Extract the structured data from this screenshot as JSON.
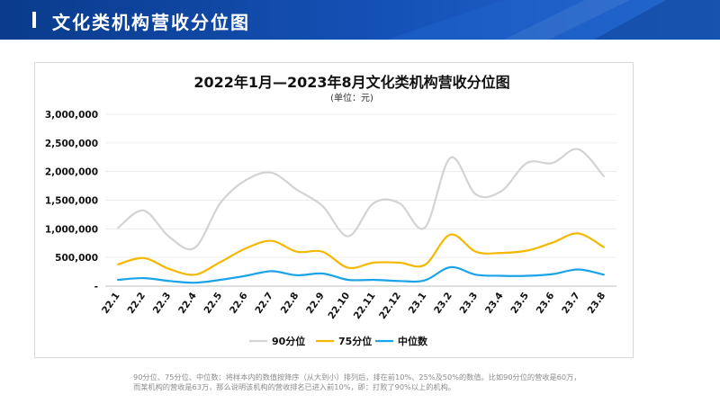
{
  "header": {
    "title": "文化类机构营收分位图"
  },
  "chart_data": {
    "type": "line",
    "title": "2022年1月—2023年8月文化类机构营收分位图",
    "subtitle": "(单位：元)",
    "categories": [
      "22.1",
      "22.2",
      "22.3",
      "22.4",
      "22.5",
      "22.6",
      "22.7",
      "22.8",
      "22.9",
      "22.10",
      "22.11",
      "22.12",
      "23.1",
      "23.2",
      "23.3",
      "23.4",
      "23.5",
      "23.6",
      "23.7",
      "23.8"
    ],
    "yticks": [
      "-",
      "500,000",
      "1,000,000",
      "1,500,000",
      "2,000,000",
      "2,500,000",
      "3,000,000"
    ],
    "ylim": [
      0,
      3000000
    ],
    "series": [
      {
        "name": "90分位",
        "color": "#d3d3d3",
        "values": [
          1020000,
          1320000,
          860000,
          670000,
          1450000,
          1850000,
          1980000,
          1680000,
          1400000,
          870000,
          1450000,
          1450000,
          1020000,
          2240000,
          1600000,
          1660000,
          2150000,
          2150000,
          2390000,
          1920000
        ]
      },
      {
        "name": "75分位",
        "color": "#f5b800",
        "values": [
          380000,
          490000,
          300000,
          200000,
          420000,
          660000,
          790000,
          600000,
          600000,
          320000,
          410000,
          410000,
          370000,
          900000,
          600000,
          580000,
          620000,
          760000,
          920000,
          680000
        ]
      },
      {
        "name": "中位数",
        "color": "#1aa3e8",
        "values": [
          110000,
          140000,
          90000,
          60000,
          110000,
          180000,
          260000,
          190000,
          220000,
          110000,
          110000,
          90000,
          100000,
          330000,
          200000,
          180000,
          180000,
          210000,
          290000,
          200000
        ]
      }
    ]
  },
  "footnote": "90分位、75分位、中位数：将样本内的数值按降序（从大到小）排列后，排在前10%、25%及50%的数值。比如90分位的营收是60万，\n而某机构的营收是63万，那么说明该机构的营收排名已进入前10%，即：打败了90%以上的机构。"
}
